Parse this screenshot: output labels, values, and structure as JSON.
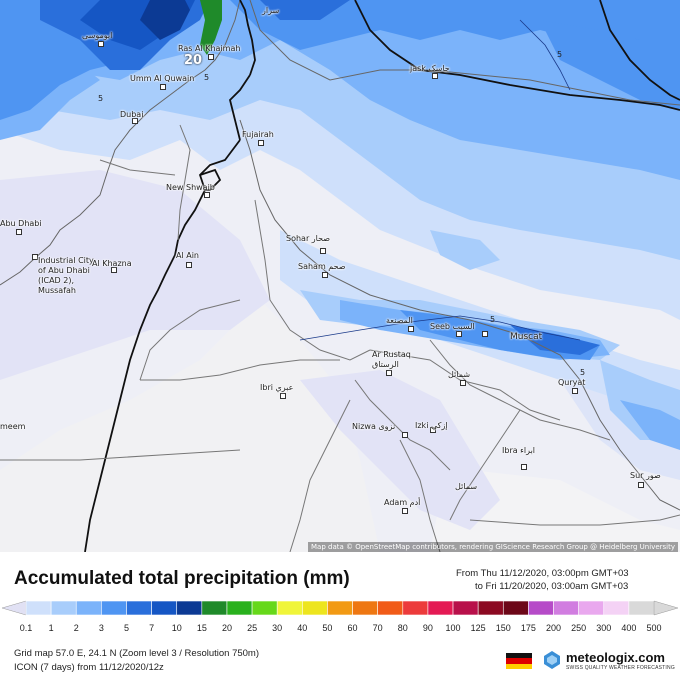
{
  "map": {
    "cities": [
      {
        "name": "ابوموسى",
        "marker": true
      },
      {
        "name": "Ras Al Khaimah",
        "marker": true
      },
      {
        "name": "Umm Al Quwain",
        "marker": true
      },
      {
        "name": "Dubai",
        "marker": true
      },
      {
        "name": "Fujairah",
        "marker": true
      },
      {
        "name": "New Shwaib",
        "marker": true
      },
      {
        "name": "Abu Dhabi",
        "marker": true
      },
      {
        "name": "Industrial City of Abu Dhabi (ICAD 2), Mussafah",
        "marker": true
      },
      {
        "name": "Al Khazna",
        "marker": true
      },
      {
        "name": "Al Ain",
        "marker": true
      },
      {
        "name": "Sohar صحار",
        "marker": true
      },
      {
        "name": "Saham صحم",
        "marker": true
      },
      {
        "name": "المصنعة",
        "marker": true
      },
      {
        "name": "Seeb السيب",
        "marker": true
      },
      {
        "name": "Muscat",
        "marker": true
      },
      {
        "name": "Ar Rustaq الرستاق",
        "marker": true
      },
      {
        "name": "شمائل",
        "marker": true
      },
      {
        "name": "Quryat",
        "marker": true
      },
      {
        "name": "Ibri عبري",
        "marker": true
      },
      {
        "name": "Nizwa نزوى",
        "marker": true
      },
      {
        "name": "Izki إزكي",
        "marker": true
      },
      {
        "name": "Ibra ابراء",
        "marker": true
      },
      {
        "name": "سمائل",
        "marker": false
      },
      {
        "name": "Adam أدم",
        "marker": true
      },
      {
        "name": "Sur صور",
        "marker": true
      },
      {
        "name": "jask جاسک",
        "marker": true
      },
      {
        "name": "meem",
        "marker": false
      },
      {
        "name": "سرار",
        "marker": false
      }
    ],
    "max_value": "20",
    "contour_labels": [
      "5",
      "5",
      "5",
      "5",
      "5"
    ],
    "attribution": "Map data © OpenStreetMap contributors, rendering GIScience Research Group @ Heidelberg University"
  },
  "footer": {
    "title": "Accumulated total precipitation (mm)",
    "period_from": "From Thu 11/12/2020, 03:00pm GMT+03",
    "period_to": "to Fri 11/20/2020, 03:00am GMT+03",
    "grid_info": "Grid map 57.0 E, 24.1 N (Zoom level 3 / Resolution 750m)",
    "model_info": "ICON (7 days) from  11/12/2020/12z",
    "logo": "meteologix.com",
    "logo_sub": "SWISS QUALITY WEATHER FORECASTING",
    "flag": "germany",
    "legend": {
      "labels": [
        "0.1",
        "1",
        "2",
        "3",
        "5",
        "7",
        "10",
        "15",
        "20",
        "25",
        "30",
        "40",
        "50",
        "60",
        "70",
        "80",
        "90",
        "100",
        "125",
        "150",
        "175",
        "200",
        "250",
        "300",
        "400",
        "500"
      ],
      "colors": [
        "#e1e1f4",
        "#cfe0fb",
        "#a8cdfb",
        "#7bb3fa",
        "#4f95f2",
        "#2a6fdb",
        "#1556c4",
        "#0c3a94",
        "#1f8a2a",
        "#29b11d",
        "#66d81a",
        "#f0f53a",
        "#ede51e",
        "#f29a14",
        "#ee7712",
        "#f15b18",
        "#ec3b3b",
        "#e41a54",
        "#b8104a",
        "#8c0a22",
        "#6d0718",
        "#b64bc8",
        "#d17de0",
        "#e9a8ee",
        "#f4d2f5",
        "#d9d9d9"
      ]
    }
  }
}
